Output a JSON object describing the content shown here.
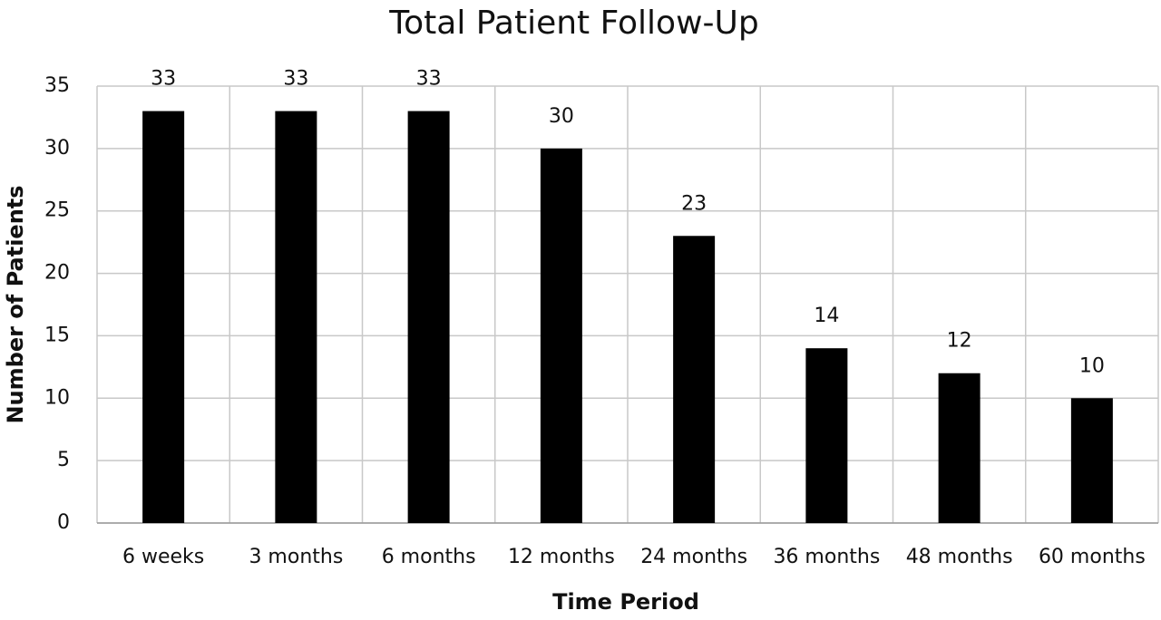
{
  "chart_data": {
    "type": "bar",
    "title": "Total Patient Follow-Up",
    "x_label": "Time Period",
    "y_label": "Number of Patients",
    "categories": [
      "6 weeks",
      "3 months",
      "6 months",
      "12 months",
      "24 months",
      "36 months",
      "48 months",
      "60 months"
    ],
    "values": [
      33,
      33,
      33,
      30,
      23,
      14,
      12,
      10
    ],
    "color": "#000000",
    "ylim": [
      0,
      35
    ],
    "yticks": [
      0,
      5,
      10,
      15,
      20,
      25,
      30,
      35
    ],
    "grid": true
  }
}
